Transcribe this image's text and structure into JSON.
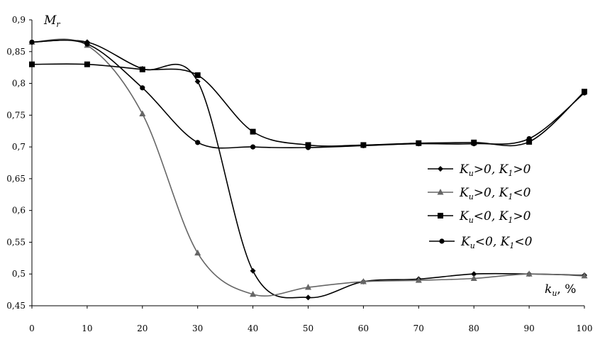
{
  "chart_data": {
    "type": "line",
    "ylabel": "M",
    "ylabel_sub": "r",
    "xlabel": "k",
    "xlabel_sub": "u",
    "xlabel_unit": ",  %",
    "xlim": [
      0,
      100
    ],
    "ylim": [
      0.45,
      0.9
    ],
    "x_ticks": [
      "0",
      "10",
      "20",
      "30",
      "40",
      "50",
      "60",
      "70",
      "80",
      "90",
      "100"
    ],
    "y_ticks": [
      "0,45",
      "0,5",
      "0,55",
      "0,6",
      "0,65",
      "0,7",
      "0,75",
      "0,8",
      "0,85",
      "0,9"
    ],
    "grid": false,
    "legend_position": "right",
    "x": [
      0,
      10,
      20,
      30,
      40,
      50,
      60,
      70,
      80,
      90,
      100
    ],
    "series": [
      {
        "name": "K_u>0, K_1>0",
        "marker": "diamond",
        "color": "#000000",
        "values": [
          0.865,
          0.865,
          0.823,
          0.803,
          0.505,
          0.463,
          0.488,
          0.492,
          0.5,
          0.5,
          0.498
        ]
      },
      {
        "name": "K_u>0, K_1<0",
        "marker": "triangle",
        "color": "#666666",
        "values": [
          0.865,
          0.86,
          0.752,
          0.533,
          0.468,
          0.479,
          0.488,
          0.49,
          0.493,
          0.5,
          0.497
        ]
      },
      {
        "name": "K_u<0, K_1>0",
        "marker": "square",
        "color": "#000000",
        "values": [
          0.83,
          0.83,
          0.822,
          0.813,
          0.724,
          0.703,
          0.703,
          0.706,
          0.707,
          0.708,
          0.787
        ]
      },
      {
        "name": "K_u<0, K_1<0",
        "marker": "circle",
        "color": "#000000",
        "values": [
          0.865,
          0.862,
          0.793,
          0.707,
          0.7,
          0.699,
          0.702,
          0.705,
          0.705,
          0.713,
          0.785
        ]
      }
    ]
  },
  "legend": [
    {
      "k1": "K",
      "s1": "u",
      "op1": ">0,  ",
      "k2": "K",
      "s2": "1",
      "op2": ">0"
    },
    {
      "k1": "K",
      "s1": "u",
      "op1": ">0,  ",
      "k2": "K",
      "s2": "1",
      "op2": "<0"
    },
    {
      "k1": "K",
      "s1": "u",
      "op1": "<0,  ",
      "k2": "K",
      "s2": "1",
      "op2": ">0"
    },
    {
      "k1": "K",
      "s1": "u",
      "op1": "<0,  ",
      "k2": "K",
      "s2": "1",
      "op2": "<0"
    }
  ]
}
